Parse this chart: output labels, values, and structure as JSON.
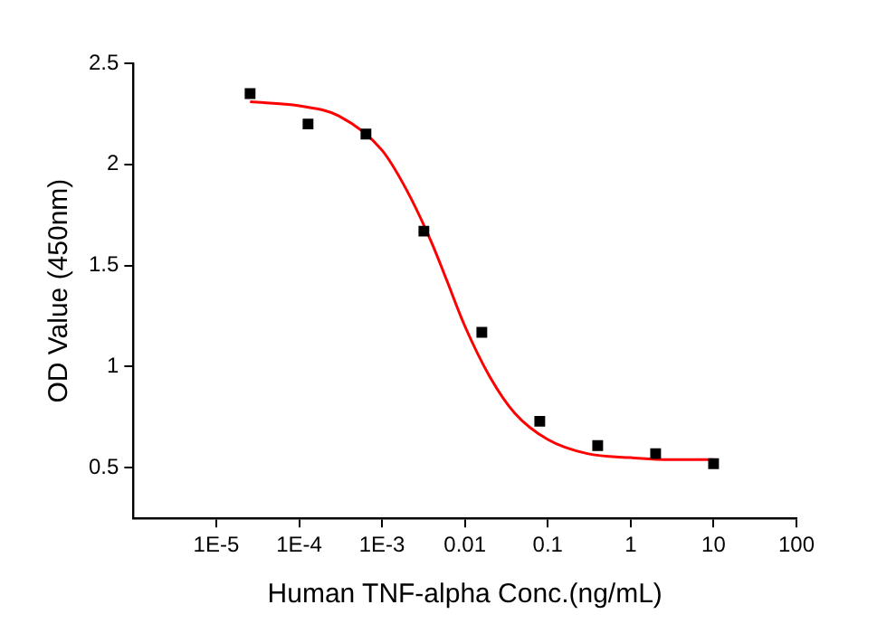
{
  "chart_data": {
    "type": "scatter",
    "xlabel": "Human TNF-alpha Conc.(ng/mL)",
    "ylabel": "OD Value (450nm)",
    "log": "x",
    "grid": false,
    "legend": false,
    "xlim": [
      1e-06,
      100
    ],
    "xticks": [
      {
        "value": 1e-05,
        "label": "1E-5"
      },
      {
        "value": 0.0001,
        "label": "1E-4"
      },
      {
        "value": 0.001,
        "label": "1E-3"
      },
      0.01,
      0.1,
      1,
      10,
      100
    ],
    "ylim": [
      0.25,
      2.5
    ],
    "yticks": [
      0.5,
      1.0,
      1.5,
      2.0,
      2.5
    ],
    "series": [
      {
        "type": "scatter",
        "color": "#000000",
        "marker": "square",
        "x": [
          2.56e-05,
          0.000128,
          0.00064,
          0.0032,
          0.016,
          0.08,
          0.4,
          2,
          10
        ],
        "values": [
          2.35,
          2.2,
          2.15,
          1.67,
          1.17,
          0.73,
          0.61,
          0.57,
          0.52
        ]
      },
      {
        "type": "line",
        "color": "#ff0000",
        "marker": "none",
        "x": [
          2.56e-05,
          0.0001,
          0.0003,
          0.001,
          0.002,
          0.004,
          0.006,
          0.01,
          0.02,
          0.04,
          0.1,
          0.3,
          1,
          3,
          10
        ],
        "values": [
          2.31,
          2.29,
          2.24,
          2.07,
          1.87,
          1.61,
          1.43,
          1.2,
          0.95,
          0.77,
          0.64,
          0.57,
          0.55,
          0.54,
          0.54
        ]
      }
    ]
  }
}
